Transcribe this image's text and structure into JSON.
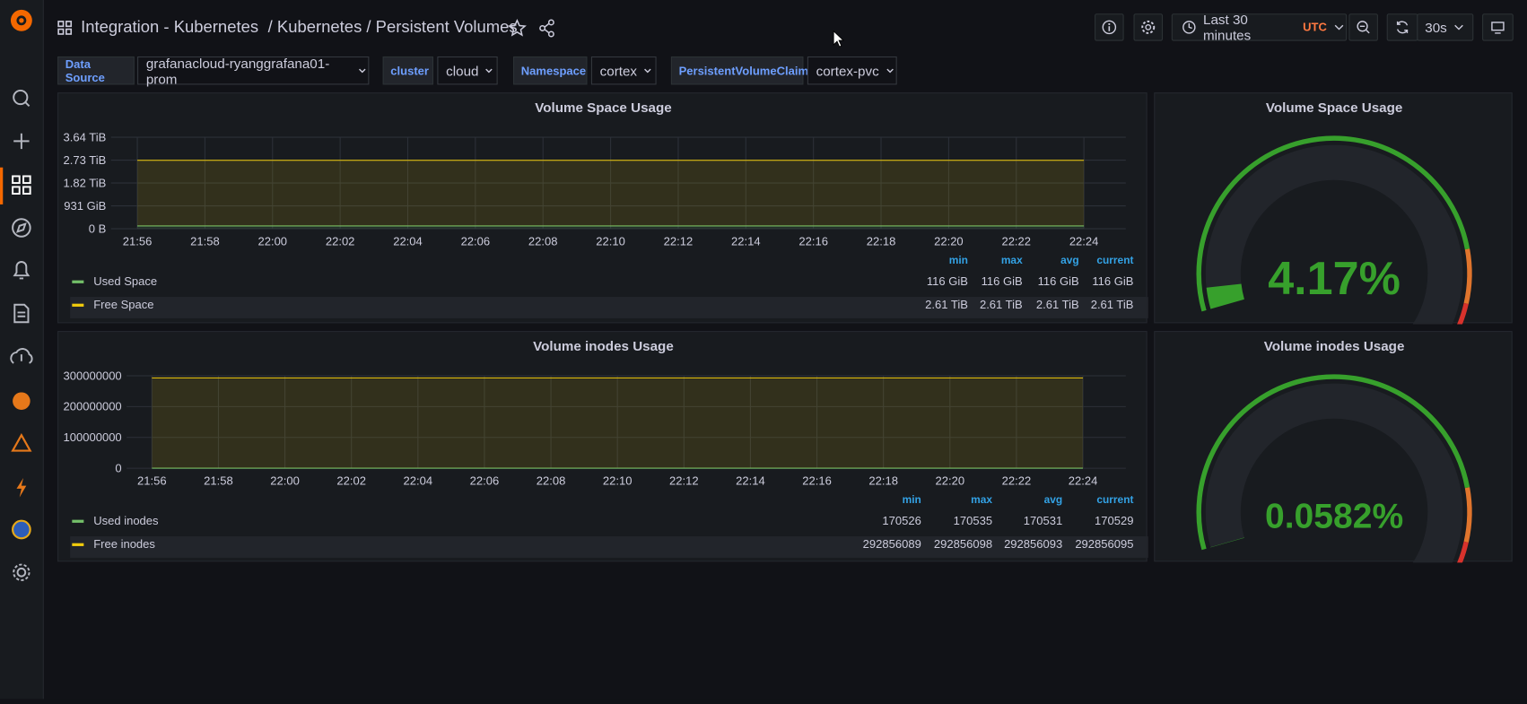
{
  "header": {
    "breadcrumb": "Integration - Kubernetes",
    "title": "/ Kubernetes / Persistent Volumes",
    "time_range": "Last 30 minutes",
    "timezone": "UTC",
    "refresh": "30s"
  },
  "variables": [
    {
      "label": "Data Source",
      "value": "grafanacloud-ryanggrafana01-prom"
    },
    {
      "label": "cluster",
      "value": "cloud"
    },
    {
      "label": "Namespace",
      "value": "cortex"
    },
    {
      "label": "PersistentVolumeClaim",
      "value": "cortex-pvc"
    }
  ],
  "panels": [
    {
      "type": "graph",
      "title": "Volume Space Usage",
      "categories": [
        "21:56",
        "21:58",
        "22:00",
        "22:02",
        "22:04",
        "22:06",
        "22:08",
        "22:10",
        "22:12",
        "22:14",
        "22:16",
        "22:18",
        "22:20",
        "22:22",
        "22:24"
      ],
      "ylim": [
        0,
        3.64
      ],
      "yticks": [
        {
          "value": 0,
          "label": "0 B"
        },
        {
          "value": 0.909,
          "label": "931 GiB"
        },
        {
          "value": 1.82,
          "label": "1.82 TiB"
        },
        {
          "value": 2.73,
          "label": "2.73 TiB"
        },
        {
          "value": 3.64,
          "label": "3.64 TiB"
        }
      ],
      "stacked": true,
      "legend_columns": [
        "min",
        "max",
        "avg",
        "current"
      ],
      "series": [
        {
          "name": "Used Space",
          "color": "#73bf69",
          "values": [
            0.113,
            0.113,
            0.113,
            0.113,
            0.113,
            0.113,
            0.113,
            0.113,
            0.113,
            0.113,
            0.113,
            0.113,
            0.113,
            0.113,
            0.113
          ],
          "stats": [
            "116 GiB",
            "116 GiB",
            "116 GiB",
            "116 GiB"
          ]
        },
        {
          "name": "Free Space",
          "color": "#f2cc0c",
          "values": [
            2.61,
            2.61,
            2.61,
            2.61,
            2.61,
            2.61,
            2.61,
            2.61,
            2.61,
            2.61,
            2.61,
            2.61,
            2.61,
            2.61,
            2.61
          ],
          "stats": [
            "2.61 TiB",
            "2.61 TiB",
            "2.61 TiB",
            "2.61 TiB"
          ]
        }
      ]
    },
    {
      "type": "gauge",
      "title": "Volume Space Usage",
      "value": 4.17,
      "value_label": "4.17%"
    },
    {
      "type": "graph",
      "title": "Volume inodes Usage",
      "categories": [
        "21:56",
        "21:58",
        "22:00",
        "22:02",
        "22:04",
        "22:06",
        "22:08",
        "22:10",
        "22:12",
        "22:14",
        "22:16",
        "22:18",
        "22:20",
        "22:22",
        "22:24"
      ],
      "ylim": [
        0,
        300000000
      ],
      "yticks": [
        0,
        100000000,
        200000000,
        300000000
      ],
      "stacked": true,
      "legend_columns": [
        "min",
        "max",
        "avg",
        "current"
      ],
      "series": [
        {
          "name": "Used inodes",
          "color": "#73bf69",
          "values": [
            170529,
            170529,
            170529,
            170529,
            170529,
            170529,
            170529,
            170529,
            170529,
            170529,
            170529,
            170529,
            170529,
            170529,
            170529
          ],
          "stats": [
            170526,
            170535,
            170531,
            170529
          ]
        },
        {
          "name": "Free inodes",
          "color": "#f2cc0c",
          "values": [
            292856095,
            292856095,
            292856095,
            292856095,
            292856095,
            292856095,
            292856095,
            292856095,
            292856095,
            292856095,
            292856095,
            292856095,
            292856095,
            292856095,
            292856095
          ],
          "stats": [
            292856089,
            292856098,
            292856093,
            292856095
          ]
        }
      ]
    },
    {
      "type": "gauge",
      "title": "Volume inodes Usage",
      "value": 0.0582,
      "value_label": "0.0582%"
    }
  ]
}
